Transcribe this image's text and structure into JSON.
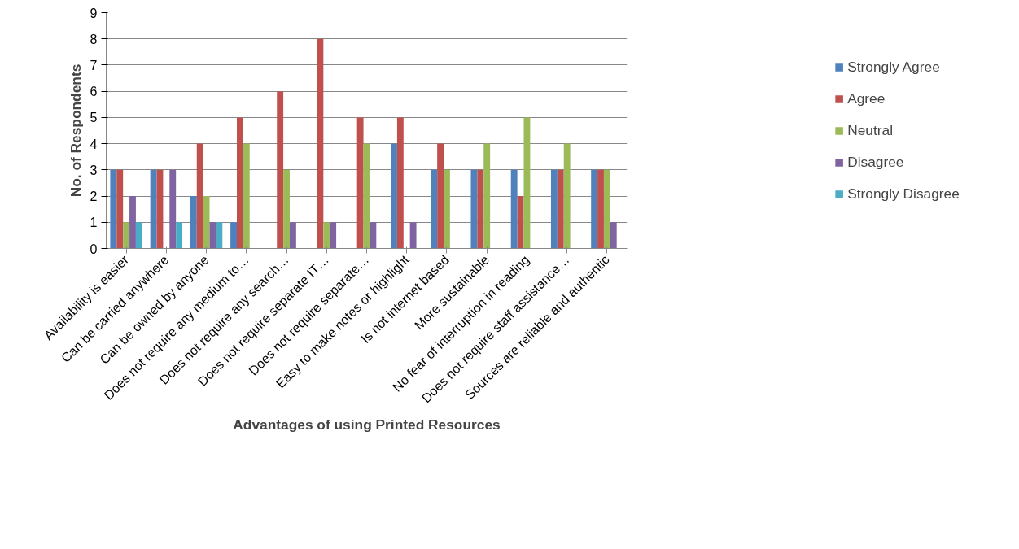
{
  "chart_data": {
    "type": "bar",
    "xlabel": "Advantages of using Printed Resources",
    "ylabel": "No. of Respondents",
    "categories": [
      "Availability is easier",
      "Can be carried anywhere",
      "Can be owned by anyone",
      "Does not require any medium to…",
      "Does not require any search…",
      "Does not require separate IT…",
      "Does not require separate…",
      "Easy to make notes or highlight",
      "Is not internet based",
      "More sustainable",
      "No fear of interruption in reading",
      "Does not require staff assistance…",
      "Sources are reliable and authentic"
    ],
    "series": [
      {
        "name": "Strongly Agree",
        "color": "#4f81bd",
        "values": [
          3,
          3,
          2,
          1,
          0,
          0,
          0,
          4,
          3,
          3,
          3,
          3,
          3
        ]
      },
      {
        "name": "Agree",
        "color": "#c0504d",
        "values": [
          3,
          3,
          4,
          5,
          6,
          8,
          5,
          5,
          4,
          3,
          2,
          3,
          3
        ]
      },
      {
        "name": "Neutral",
        "color": "#9bbb59",
        "values": [
          1,
          0,
          2,
          4,
          3,
          1,
          4,
          0,
          3,
          4,
          5,
          4,
          3
        ]
      },
      {
        "name": "Disagree",
        "color": "#8064a2",
        "values": [
          2,
          3,
          1,
          0,
          1,
          1,
          1,
          1,
          0,
          0,
          0,
          0,
          1
        ]
      },
      {
        "name": "Strongly Disagree",
        "color": "#4bacc6",
        "values": [
          1,
          1,
          1,
          0,
          0,
          0,
          0,
          0,
          0,
          0,
          0,
          0,
          0
        ]
      }
    ],
    "ylim": [
      0,
      9
    ],
    "yticks": [
      0,
      1,
      2,
      3,
      4,
      5,
      6,
      7,
      8,
      9
    ],
    "grid": "y",
    "legend": "right"
  }
}
